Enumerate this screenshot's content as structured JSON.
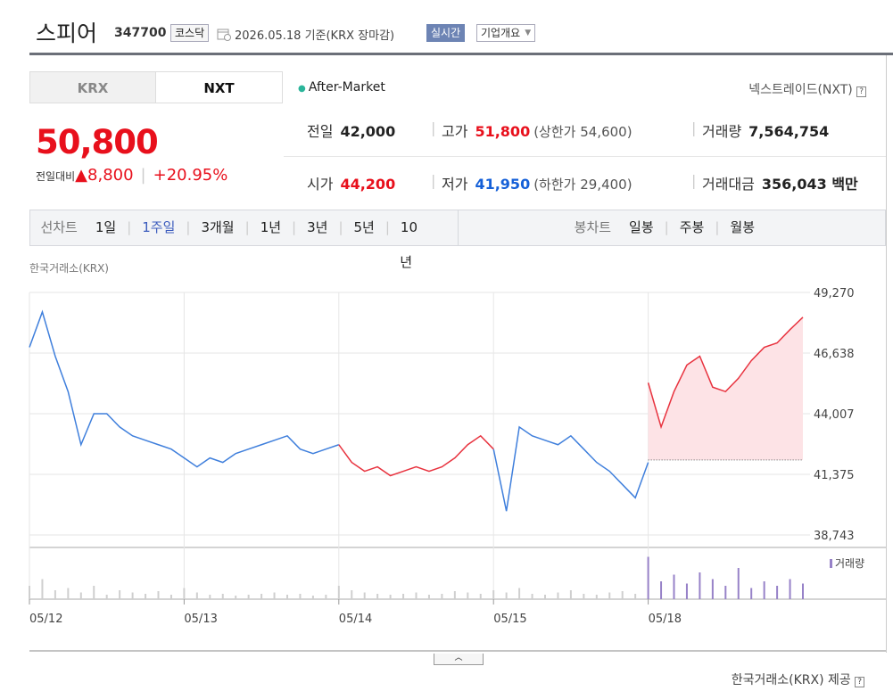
{
  "header": {
    "name": "스피어",
    "code": "347700",
    "market": "코스닥",
    "date": "2026.05.18 기준(KRX 장마감)",
    "realtime": "실시간",
    "company": "기업개요"
  },
  "tabs": [
    "KRX",
    "NXT"
  ],
  "after_market": "After-Market",
  "nxt_link": "넥스트레이드(NXT)",
  "price": {
    "current": "50,800",
    "change_label": "전일대비",
    "change": "8,800",
    "rate": "+20.95%"
  },
  "quotes": [
    {
      "label": "전일",
      "value": "42,000"
    },
    {
      "label": "고가",
      "value": "51,800",
      "note": "(상한가 54,600)"
    },
    {
      "label": "거래량",
      "value": "7,564,754"
    },
    {
      "label": "시가",
      "value": "44,200"
    },
    {
      "label": "저가",
      "value": "41,950",
      "note": "(하한가 29,400)"
    },
    {
      "label": "거래대금",
      "value": "356,043 백만"
    }
  ],
  "periods": {
    "label": "선차트",
    "items": [
      "1일",
      "1주일",
      "3개월",
      "1년",
      "3년",
      "5년",
      "10년"
    ],
    "selected": 1
  },
  "candles": {
    "label": "봉차트",
    "items": [
      "일봉",
      "주봉",
      "월봉"
    ]
  },
  "source": "한국거래소(KRX)",
  "footer": "한국거래소(KRX) 제공",
  "chart_data": {
    "type": "line",
    "categories": [
      "05/12",
      null,
      null,
      null,
      null,
      null,
      null,
      null,
      null,
      null,
      null,
      null,
      "05/13",
      null,
      null,
      null,
      null,
      null,
      null,
      null,
      null,
      null,
      null,
      null,
      "05/14",
      null,
      null,
      null,
      null,
      null,
      null,
      null,
      null,
      null,
      null,
      null,
      "05/15",
      null,
      null,
      null,
      null,
      null,
      null,
      null,
      null,
      null,
      null,
      null,
      "05/18",
      null,
      null,
      null,
      null,
      null,
      null,
      null,
      null,
      null,
      null,
      null,
      null
    ],
    "series": [
      {
        "color": "#3f7fdc",
        "values": [
          46888,
          48425,
          46504,
          44967,
          42662,
          44006,
          44006,
          43430,
          43046,
          42854,
          42662,
          42470,
          42086,
          41701,
          42086,
          41893,
          42278,
          42470,
          42662,
          42854,
          43046,
          42470,
          42278,
          42470,
          42662,
          null,
          null,
          null,
          null,
          null,
          null,
          null,
          null,
          null,
          null,
          null,
          42470,
          39780,
          43430,
          43046,
          42854,
          42662,
          43046,
          42470,
          41893,
          41509,
          40932,
          40356,
          41893,
          null,
          null,
          null,
          null,
          null,
          null,
          null,
          null,
          null,
          null,
          null,
          null
        ]
      },
      {
        "color": "#e8333f",
        "values": [
          null,
          null,
          null,
          null,
          null,
          null,
          null,
          null,
          null,
          null,
          null,
          null,
          null,
          null,
          null,
          null,
          null,
          null,
          null,
          null,
          null,
          null,
          null,
          null,
          42662,
          41893,
          41509,
          41701,
          41317,
          41509,
          41701,
          41509,
          41701,
          42086,
          42662,
          43046,
          42470,
          null,
          null,
          null,
          null,
          null,
          null,
          null,
          null,
          null,
          null,
          null,
          45351,
          43430,
          44967,
          46120,
          46504,
          45159,
          44967,
          45544,
          46312,
          46888,
          47080,
          47656,
          48194
        ]
      }
    ],
    "baseline": 42000,
    "baseline_color": "#fde3e6",
    "ylim": [
      38743,
      49270
    ],
    "yticks": [
      {
        "value": 49270,
        "label": "49,270"
      },
      {
        "value": 46638,
        "label": "46,638"
      },
      {
        "value": 44007,
        "label": "44,007"
      },
      {
        "value": 41375,
        "label": "41,375"
      },
      {
        "value": 38743,
        "label": "38,743"
      }
    ],
    "grid": true,
    "volume": [
      {
        "color": "#cfcfcf",
        "values": [
          30,
          45,
          20,
          25,
          15,
          30,
          10,
          20,
          15,
          12,
          18,
          10,
          25,
          15,
          10,
          12,
          8,
          10,
          12,
          15,
          10,
          12,
          8,
          10,
          30,
          20,
          15,
          12,
          10,
          12,
          15,
          10,
          12,
          18,
          15,
          12,
          20,
          15,
          25,
          12,
          10,
          15,
          20,
          12,
          10,
          15,
          18,
          12,
          null,
          null,
          null,
          null,
          null,
          null,
          null,
          null,
          null,
          null,
          null,
          null,
          null
        ]
      },
      {
        "name": "거래량",
        "color": "#9782c8",
        "values": [
          null,
          null,
          null,
          null,
          null,
          null,
          null,
          null,
          null,
          null,
          null,
          null,
          null,
          null,
          null,
          null,
          null,
          null,
          null,
          null,
          null,
          null,
          null,
          null,
          null,
          null,
          null,
          null,
          null,
          null,
          null,
          null,
          null,
          null,
          null,
          null,
          null,
          null,
          null,
          null,
          null,
          null,
          null,
          null,
          null,
          null,
          null,
          null,
          95,
          40,
          55,
          35,
          60,
          45,
          30,
          70,
          25,
          40,
          30,
          45,
          35
        ]
      }
    ],
    "vlim": [
      0,
      100
    ]
  }
}
